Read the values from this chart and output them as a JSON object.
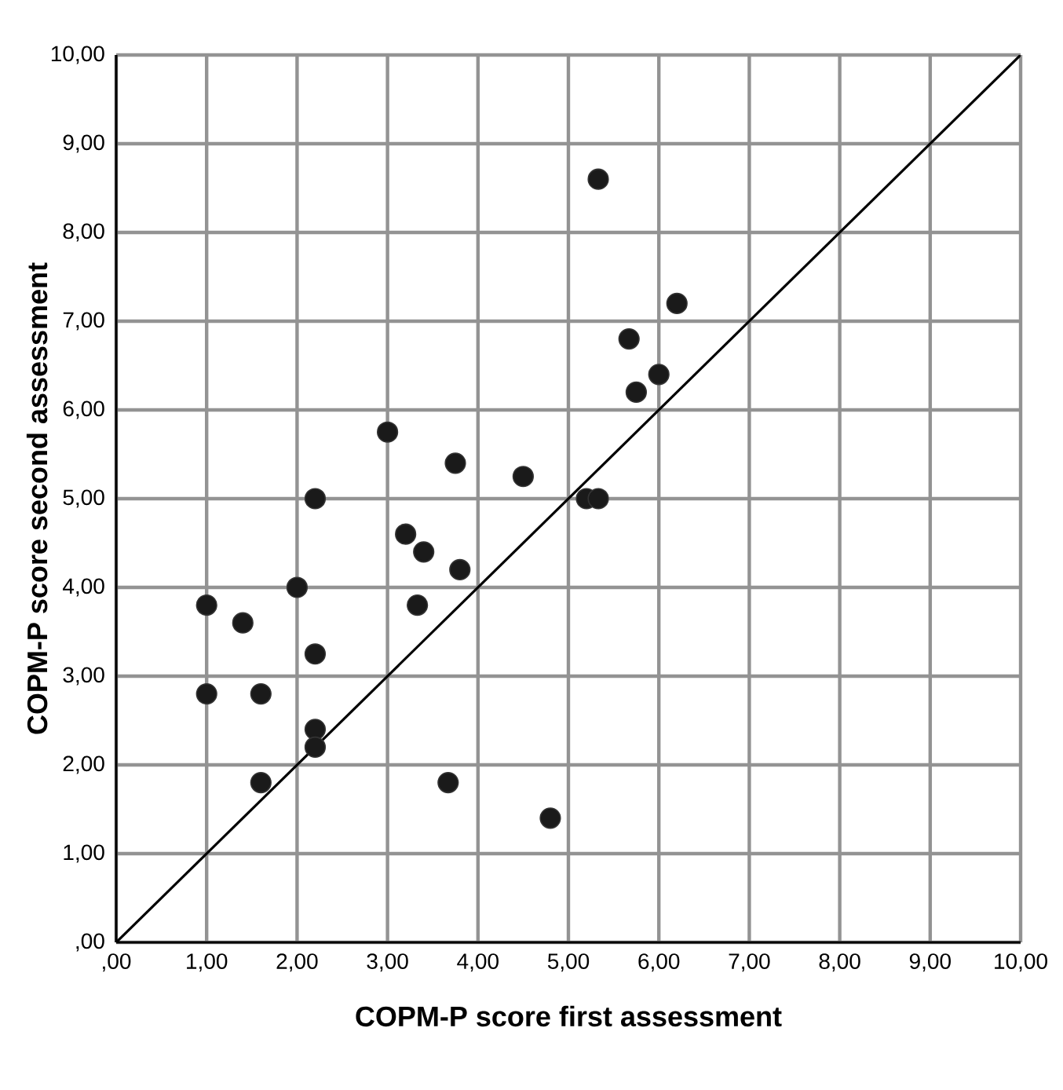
{
  "chart_data": {
    "type": "scatter",
    "xlabel": "COPM-P score first assessment",
    "ylabel": "COPM-P score second assessment",
    "x": [
      1.0,
      1.0,
      1.4,
      1.6,
      1.6,
      2.0,
      2.2,
      2.2,
      2.2,
      2.2,
      3.0,
      3.2,
      3.4,
      3.33,
      3.75,
      3.8,
      3.67,
      4.5,
      4.8,
      5.2,
      5.33,
      5.33,
      5.67,
      5.75,
      6.0,
      6.2
    ],
    "series": [
      {
        "color": "#1a1a1a",
        "marker": "circle",
        "values": [
          3.8,
          2.8,
          3.6,
          2.8,
          1.8,
          4.0,
          5.0,
          3.25,
          2.4,
          2.2,
          5.75,
          4.6,
          4.4,
          3.8,
          5.4,
          4.2,
          1.8,
          5.25,
          1.4,
          5.0,
          5.0,
          8.6,
          6.8,
          6.2,
          6.4,
          7.2
        ]
      },
      {
        "type": "line",
        "color": "#000000",
        "marker": "none",
        "x": [
          0,
          10
        ],
        "values": [
          0,
          10
        ]
      }
    ],
    "xlim": [
      0,
      10
    ],
    "ylim": [
      0,
      10
    ],
    "xticks": [
      {
        "value": 0,
        "label": ",00"
      },
      {
        "value": 1,
        "label": "1,00"
      },
      {
        "value": 2,
        "label": "2,00"
      },
      {
        "value": 3,
        "label": "3,00"
      },
      {
        "value": 4,
        "label": "4,00"
      },
      {
        "value": 5,
        "label": "5,00"
      },
      {
        "value": 6,
        "label": "6,00"
      },
      {
        "value": 7,
        "label": "7,00"
      },
      {
        "value": 8,
        "label": "8,00"
      },
      {
        "value": 9,
        "label": "9,00"
      },
      {
        "value": 10,
        "label": "10,00"
      }
    ],
    "yticks": [
      {
        "value": 0,
        "label": ",00"
      },
      {
        "value": 1,
        "label": "1,00"
      },
      {
        "value": 2,
        "label": "2,00"
      },
      {
        "value": 3,
        "label": "3,00"
      },
      {
        "value": 4,
        "label": "4,00"
      },
      {
        "value": 5,
        "label": "5,00"
      },
      {
        "value": 6,
        "label": "6,00"
      },
      {
        "value": 7,
        "label": "7,00"
      },
      {
        "value": 8,
        "label": "8,00"
      },
      {
        "value": 9,
        "label": "9,00"
      },
      {
        "value": 10,
        "label": "10,00"
      }
    ],
    "grid": true
  }
}
